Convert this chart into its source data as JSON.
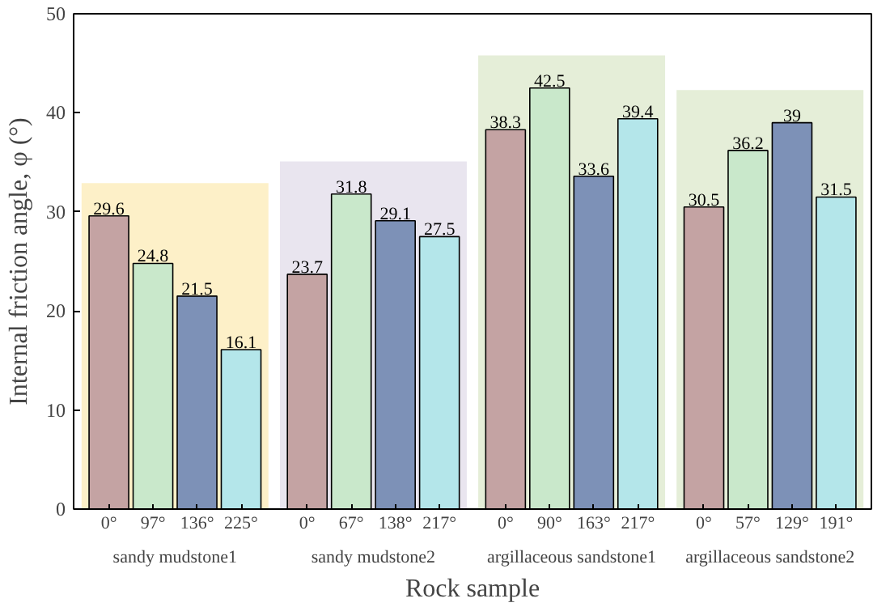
{
  "chart_data": {
    "type": "bar",
    "xlabel": "Rock sample",
    "ylabel": "Internal friction angle, φ (°)",
    "categories": [
      "sandy mudstone1",
      "sandy mudstone2",
      "argillaceous sandstone1",
      "argillaceous sandstone2"
    ],
    "series": [
      {
        "color": "#c4a3a3",
        "values": [
          29.6,
          23.7,
          38.3,
          30.5
        ]
      },
      {
        "color": "#c9e8cb",
        "values": [
          24.8,
          31.8,
          42.5,
          36.2
        ]
      },
      {
        "color": "#7d91b7",
        "values": [
          21.5,
          29.1,
          33.6,
          39
        ]
      },
      {
        "color": "#b4e6ea",
        "values": [
          16.1,
          27.5,
          39.4,
          31.5
        ]
      }
    ],
    "data_labels": true,
    "annotations": [
      "0°",
      "97°",
      "136°",
      "225°",
      "0°",
      "67°",
      "138°",
      "217°",
      "0°",
      "90°",
      "163°",
      "217°",
      "0°",
      "57°",
      "129°",
      "191°"
    ],
    "bands": [
      {
        "axis": "x",
        "from": "sandy mudstone1",
        "to": "sandy mudstone1",
        "color": "#fdf0c8"
      },
      {
        "axis": "x",
        "from": "sandy mudstone2",
        "to": "sandy mudstone2",
        "color": "#e9e5ef"
      },
      {
        "axis": "x",
        "from": "argillaceous sandstone1",
        "to": "argillaceous sandstone1",
        "color": "#e5eed8"
      },
      {
        "axis": "x",
        "from": "argillaceous sandstone2",
        "to": "argillaceous sandstone2",
        "color": "#e5eed8"
      }
    ],
    "ylim": [
      0,
      50
    ],
    "yticks": [
      0,
      10,
      20,
      30,
      40,
      50
    ],
    "grid": false
  }
}
